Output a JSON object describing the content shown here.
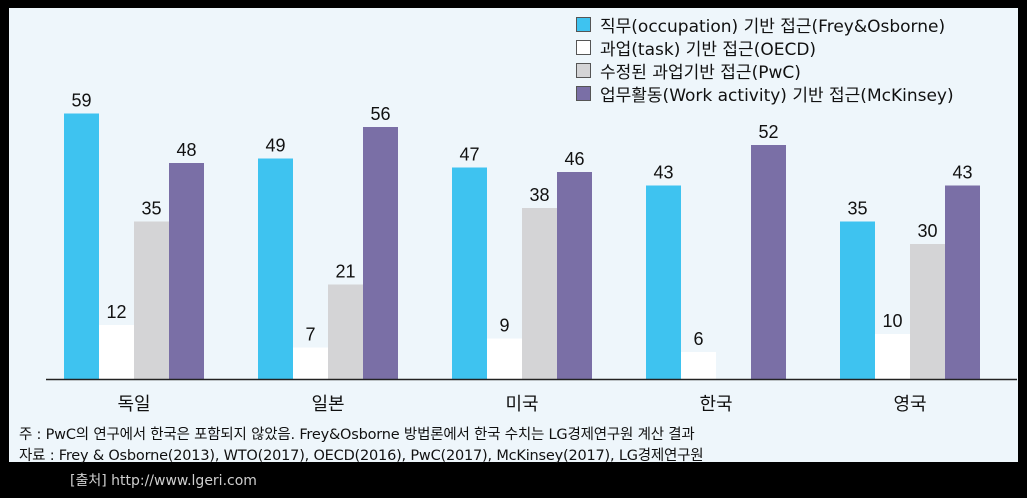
{
  "chart_data": {
    "type": "bar",
    "categories": [
      "독일",
      "일본",
      "미국",
      "한국",
      "영국"
    ],
    "series": [
      {
        "name": "직무(occupation) 기반 접근(Frey&Osborne)",
        "color": "#3ec3f0",
        "values": [
          59,
          49,
          47,
          43,
          35
        ]
      },
      {
        "name": "과업(task) 기반 접근(OECD)",
        "color": "#ffffff",
        "values": [
          12,
          7,
          9,
          6,
          10
        ]
      },
      {
        "name": "수정된 과업기반 접근(PwC)",
        "color": "#d4d4d6",
        "values": [
          35,
          21,
          38,
          null,
          30
        ]
      },
      {
        "name": "업무활동(Work activity) 기반 접근(McKinsey)",
        "color": "#7a6fa6",
        "values": [
          48,
          56,
          46,
          52,
          43
        ]
      }
    ],
    "ylim": [
      0,
      60
    ],
    "grid": false,
    "legend_position": "top-right"
  },
  "notes": {
    "note_line": "주 : PwC의 연구에서 한국은 포함되지 않았음. Frey&Osborne 방법론에서 한국 수치는 LG경제연구원 계산 결과",
    "source_line": "자료 : Frey & Osborne(2013), WTO(2017), OECD(2016), PwC(2017), McKinsey(2017), LG경제연구원"
  },
  "attribution": "[출처] http://www.lgeri.com"
}
